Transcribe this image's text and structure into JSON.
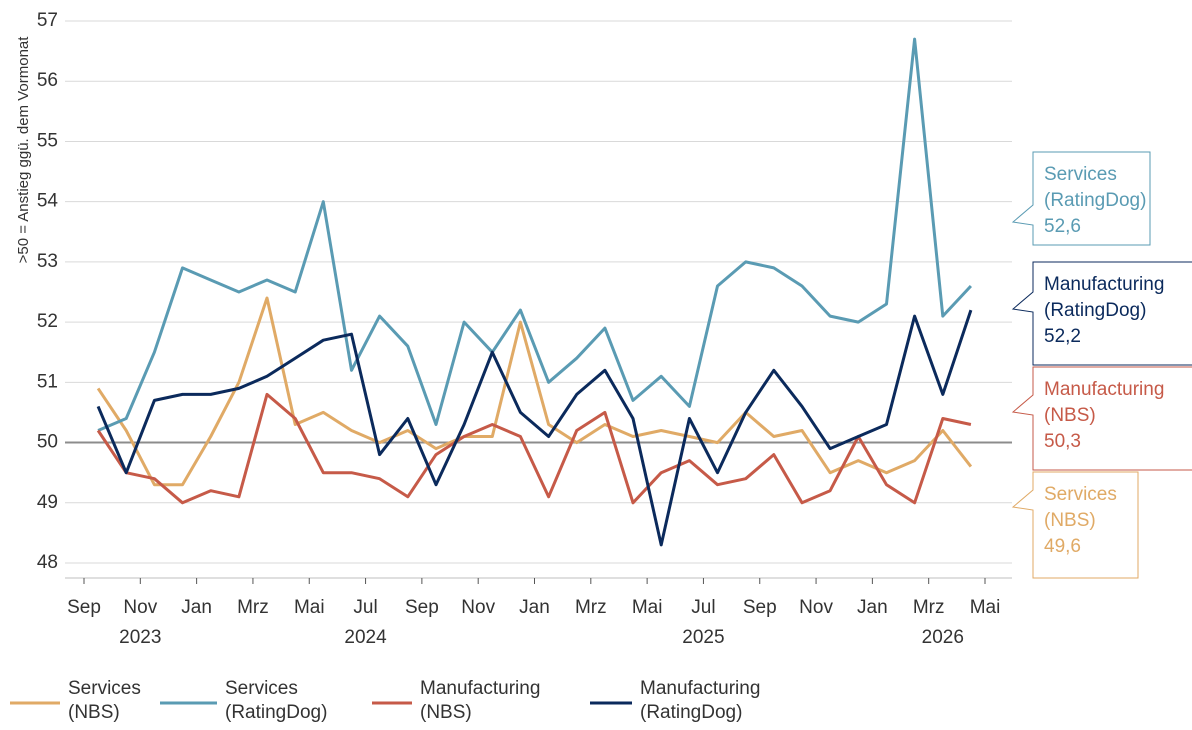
{
  "chart_data": {
    "type": "line",
    "y_label": ">50 = Anstieg ggü. dem Vormonat",
    "x": [
      "2023-09",
      "2023-10",
      "2023-11",
      "2023-12",
      "2024-01",
      "2024-02",
      "2024-03",
      "2024-04",
      "2024-05",
      "2024-06",
      "2024-07",
      "2024-08",
      "2024-09",
      "2024-10",
      "2024-11",
      "2024-12",
      "2025-01",
      "2025-02",
      "2025-03",
      "2025-04",
      "2025-05",
      "2025-06",
      "2025-07",
      "2025-08",
      "2025-09",
      "2025-10",
      "2025-11",
      "2025-12",
      "2026-01",
      "2026-02",
      "2026-03",
      "2026-04"
    ],
    "xlim": [
      "2023-09",
      "2026-05"
    ],
    "xticks": [
      {
        "value": "2023-09",
        "label": "Sep"
      },
      {
        "value": "2023-11",
        "label": "Nov"
      },
      {
        "value": "2024-01",
        "label": "Jan"
      },
      {
        "value": "2024-03",
        "label": "Mrz"
      },
      {
        "value": "2024-05",
        "label": "Mai"
      },
      {
        "value": "2024-07",
        "label": "Jul"
      },
      {
        "value": "2024-09",
        "label": "Sep"
      },
      {
        "value": "2024-11",
        "label": "Nov"
      },
      {
        "value": "2025-01",
        "label": "Jan"
      },
      {
        "value": "2025-03",
        "label": "Mrz"
      },
      {
        "value": "2025-05",
        "label": "Mai"
      },
      {
        "value": "2025-07",
        "label": "Jul"
      },
      {
        "value": "2025-09",
        "label": "Sep"
      },
      {
        "value": "2025-11",
        "label": "Nov"
      },
      {
        "value": "2026-01",
        "label": "Jan"
      },
      {
        "value": "2026-03",
        "label": "Mrz"
      },
      {
        "value": "2026-05",
        "label": "Mai"
      }
    ],
    "x_year_labels": [
      {
        "value": "2023-11",
        "label": "2023"
      },
      {
        "value": "2024-07",
        "label": "2024"
      },
      {
        "value": "2025-07",
        "label": "2025"
      },
      {
        "value": "2026-03",
        "label": "2026"
      }
    ],
    "ylim": [
      48,
      57
    ],
    "yticks": [
      48,
      49,
      50,
      51,
      52,
      53,
      54,
      55,
      56,
      57
    ],
    "reference_line": 50,
    "grid": true,
    "legend": "bottom",
    "series": [
      {
        "name": "Services (NBS)",
        "color": "#e0aa66",
        "values": [
          50.9,
          50.2,
          49.3,
          49.3,
          50.1,
          51.0,
          52.4,
          50.3,
          50.5,
          50.2,
          50.0,
          50.2,
          49.9,
          50.1,
          50.1,
          52.0,
          50.3,
          50.0,
          50.3,
          50.1,
          50.2,
          50.1,
          50.0,
          50.5,
          50.1,
          50.2,
          49.5,
          49.7,
          49.5,
          49.7,
          50.2,
          49.6
        ],
        "value_labels": [
          null,
          null,
          null,
          null,
          null,
          null,
          null,
          null,
          null,
          null,
          null,
          null,
          null,
          null,
          null,
          null,
          null,
          null,
          null,
          null,
          null,
          null,
          null,
          null,
          null,
          null,
          null,
          null,
          null,
          null,
          null,
          "49,6"
        ]
      },
      {
        "name": "Services (RatingDog)",
        "color": "#5a9bb3",
        "values": [
          50.2,
          50.4,
          51.5,
          52.9,
          52.7,
          52.5,
          52.7,
          52.5,
          54.0,
          51.2,
          52.1,
          51.6,
          50.3,
          52.0,
          51.5,
          52.2,
          51.0,
          51.4,
          51.9,
          50.7,
          51.1,
          50.6,
          52.6,
          53.0,
          52.9,
          52.6,
          52.1,
          52.0,
          52.3,
          56.7,
          52.1,
          52.6
        ],
        "value_labels": [
          null,
          null,
          null,
          null,
          null,
          null,
          null,
          null,
          null,
          null,
          null,
          null,
          null,
          null,
          null,
          null,
          null,
          null,
          null,
          null,
          null,
          null,
          null,
          null,
          null,
          null,
          null,
          null,
          null,
          null,
          null,
          "52,6"
        ]
      },
      {
        "name": "Manufacturing (NBS)",
        "color": "#c65a48",
        "values": [
          50.2,
          49.5,
          49.4,
          49.0,
          49.2,
          49.1,
          50.8,
          50.4,
          49.5,
          49.5,
          49.4,
          49.1,
          49.8,
          50.1,
          50.3,
          50.1,
          49.1,
          50.2,
          50.5,
          49.0,
          49.5,
          49.7,
          49.3,
          49.4,
          49.8,
          49.0,
          49.2,
          50.1,
          49.3,
          49.0,
          50.4,
          50.3
        ],
        "value_labels": [
          null,
          null,
          null,
          null,
          null,
          null,
          null,
          null,
          null,
          null,
          null,
          null,
          null,
          null,
          null,
          null,
          null,
          null,
          null,
          null,
          null,
          null,
          null,
          null,
          null,
          null,
          null,
          null,
          null,
          null,
          null,
          "50,3"
        ]
      },
      {
        "name": "Manufacturing (RatingDog)",
        "color": "#0b2a5c",
        "values": [
          50.6,
          49.5,
          50.7,
          50.8,
          50.8,
          50.9,
          51.1,
          51.4,
          51.7,
          51.8,
          49.8,
          50.4,
          49.3,
          50.3,
          51.5,
          50.5,
          50.1,
          50.8,
          51.2,
          50.4,
          48.3,
          50.4,
          49.5,
          50.5,
          51.2,
          50.6,
          49.9,
          50.1,
          50.3,
          52.1,
          50.8,
          52.2
        ],
        "value_labels": [
          null,
          null,
          null,
          null,
          null,
          null,
          null,
          null,
          null,
          null,
          null,
          null,
          null,
          null,
          null,
          null,
          null,
          null,
          null,
          null,
          null,
          null,
          null,
          null,
          null,
          null,
          null,
          null,
          null,
          null,
          null,
          "52,2"
        ]
      }
    ]
  }
}
